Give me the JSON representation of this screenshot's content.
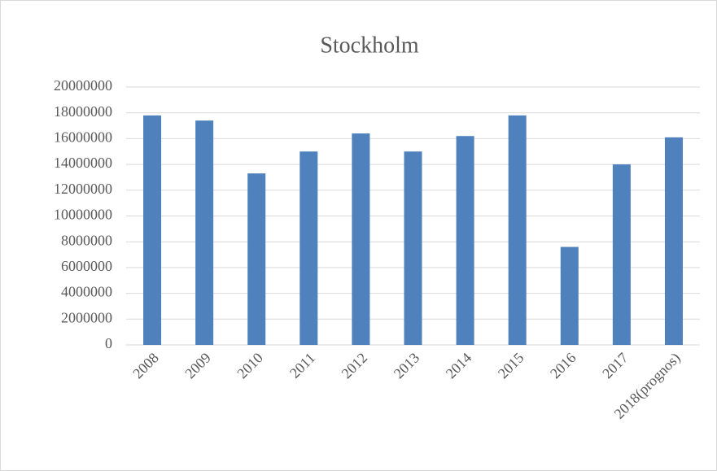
{
  "chart_data": {
    "type": "bar",
    "title": "Stockholm",
    "categories": [
      "2008",
      "2009",
      "2010",
      "2011",
      "2012",
      "2013",
      "2014",
      "2015",
      "2016",
      "2017",
      "2018(prognos)"
    ],
    "values": [
      17800000,
      17400000,
      13300000,
      15000000,
      16400000,
      15000000,
      16200000,
      17800000,
      7600000,
      14000000,
      16100000
    ],
    "color": "#4f81bd",
    "ylim": [
      0,
      20000000
    ],
    "yticks": [
      0,
      2000000,
      4000000,
      6000000,
      8000000,
      10000000,
      12000000,
      14000000,
      16000000,
      18000000,
      20000000
    ],
    "grid": true
  }
}
